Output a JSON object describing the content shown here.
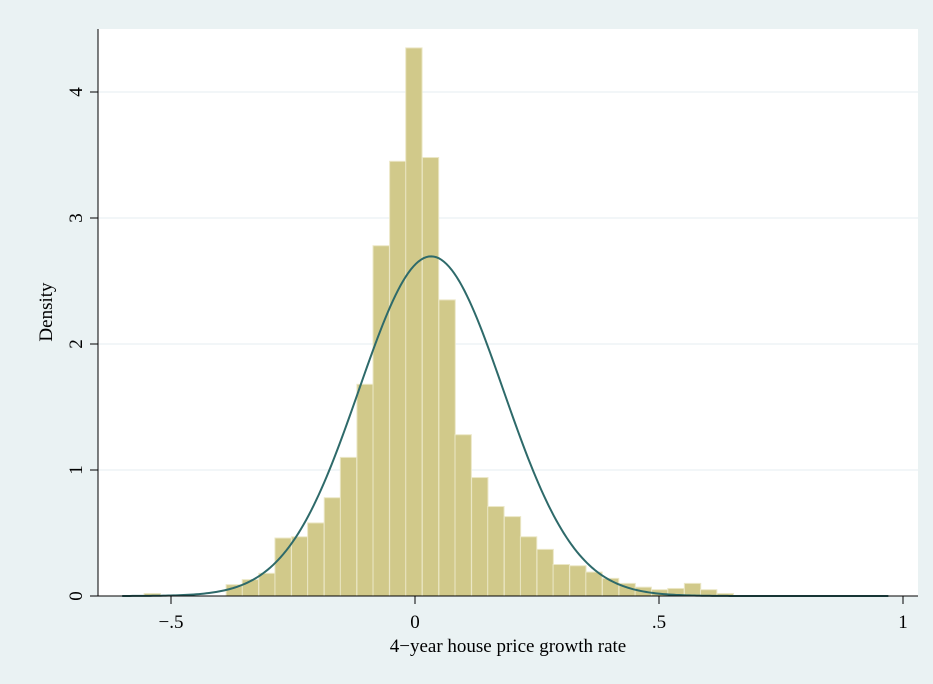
{
  "chart_data": {
    "type": "bar",
    "xlabel": "4−year house price growth rate",
    "ylabel": "Density",
    "xlim": [
      -0.6,
      1.0
    ],
    "ylim": [
      0,
      4.4
    ],
    "grid": "horizontal",
    "colors": {
      "background": "#eaf2f3",
      "plot_background": "#ffffff",
      "bars": "#d1c98a",
      "bar_edge": "#ebe7c6",
      "curve": "#2e6a6a",
      "grid": "#e4eef0"
    },
    "x_ticks": [
      {
        "value": -0.5,
        "label": "−.5"
      },
      {
        "value": 0,
        "label": "0"
      },
      {
        "value": 0.5,
        "label": ".5"
      },
      {
        "value": 1,
        "label": "1"
      }
    ],
    "y_ticks": [
      {
        "value": 0,
        "label": "0"
      },
      {
        "value": 1,
        "label": "1"
      },
      {
        "value": 2,
        "label": "2"
      },
      {
        "value": 3,
        "label": "3"
      },
      {
        "value": 4,
        "label": "4"
      }
    ],
    "bin_width": 0.0335,
    "bins": [
      {
        "x0": -0.555,
        "density": 0.02
      },
      {
        "x0": -0.522,
        "density": 0.0
      },
      {
        "x0": -0.488,
        "density": 0.0
      },
      {
        "x0": -0.455,
        "density": 0.0
      },
      {
        "x0": -0.421,
        "density": 0.0
      },
      {
        "x0": -0.387,
        "density": 0.09
      },
      {
        "x0": -0.354,
        "density": 0.13
      },
      {
        "x0": -0.32,
        "density": 0.18
      },
      {
        "x0": -0.287,
        "density": 0.46
      },
      {
        "x0": -0.253,
        "density": 0.47
      },
      {
        "x0": -0.22,
        "density": 0.58
      },
      {
        "x0": -0.186,
        "density": 0.78
      },
      {
        "x0": -0.153,
        "density": 1.1
      },
      {
        "x0": -0.119,
        "density": 1.68
      },
      {
        "x0": -0.086,
        "density": 2.78
      },
      {
        "x0": -0.052,
        "density": 3.45
      },
      {
        "x0": -0.019,
        "density": 4.35
      },
      {
        "x0": 0.015,
        "density": 3.48
      },
      {
        "x0": 0.049,
        "density": 2.35
      },
      {
        "x0": 0.082,
        "density": 1.28
      },
      {
        "x0": 0.116,
        "density": 0.94
      },
      {
        "x0": 0.149,
        "density": 0.71
      },
      {
        "x0": 0.183,
        "density": 0.63
      },
      {
        "x0": 0.216,
        "density": 0.47
      },
      {
        "x0": 0.25,
        "density": 0.37
      },
      {
        "x0": 0.283,
        "density": 0.25
      },
      {
        "x0": 0.317,
        "density": 0.24
      },
      {
        "x0": 0.35,
        "density": 0.19
      },
      {
        "x0": 0.384,
        "density": 0.14
      },
      {
        "x0": 0.418,
        "density": 0.1
      },
      {
        "x0": 0.451,
        "density": 0.07
      },
      {
        "x0": 0.485,
        "density": 0.05
      },
      {
        "x0": 0.518,
        "density": 0.06
      },
      {
        "x0": 0.552,
        "density": 0.1
      },
      {
        "x0": 0.585,
        "density": 0.05
      },
      {
        "x0": 0.619,
        "density": 0.02
      }
    ],
    "normal_curve": {
      "mean": 0.033,
      "sd": 0.148,
      "x_range": [
        -0.6,
        0.97
      ]
    }
  }
}
